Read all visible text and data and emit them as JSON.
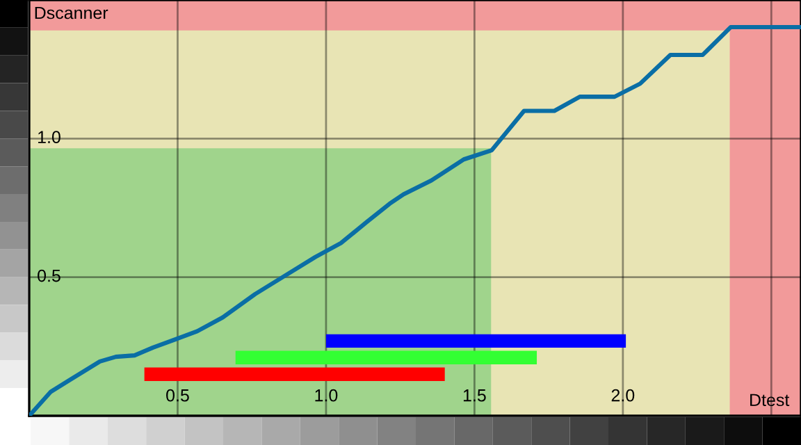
{
  "chart_data": {
    "type": "line",
    "xlabel": "Dtest",
    "ylabel": "Dscanner",
    "xlim": [
      0,
      2.6
    ],
    "ylim": [
      0,
      1.5
    ],
    "xticks": [
      0.5,
      {
        "value": 1.0,
        "label": "1.0"
      },
      {
        "value": 1.5,
        "label": "1.5"
      },
      {
        "value": 2.0,
        "label": "2.0"
      },
      {
        "value": 2.5,
        "label": null
      }
    ],
    "yticks": [
      0.5,
      {
        "value": 1.0,
        "label": "1.0"
      }
    ],
    "grid": true,
    "legend": false,
    "bands": [
      {
        "axis": "y",
        "from": 1.39,
        "to": 1.5,
        "color": "#f29a9a"
      },
      {
        "axis": "x",
        "from": 2.36,
        "to": 2.6,
        "color": "#f29a9a"
      }
    ],
    "series": [
      {
        "type": "area",
        "color": "#a0d48c",
        "x": [
          0,
          1.556
        ],
        "values": [
          0.965,
          0.965
        ]
      },
      {
        "color": "#0a6ea5",
        "x": [
          0,
          0.073,
          0.136,
          0.238,
          0.292,
          0.355,
          0.417,
          0.503,
          0.566,
          0.652,
          0.761,
          0.855,
          0.964,
          1.05,
          1.136,
          1.214,
          1.261,
          1.355,
          1.464,
          1.558,
          1.667,
          1.769,
          1.855,
          1.972,
          2.058,
          2.16,
          2.269,
          2.363,
          2.6
        ],
        "values": [
          0,
          0.087,
          0.129,
          0.196,
          0.213,
          0.218,
          0.246,
          0.28,
          0.305,
          0.355,
          0.439,
          0.501,
          0.573,
          0.623,
          0.698,
          0.765,
          0.799,
          0.849,
          0.925,
          0.958,
          1.1,
          1.1,
          1.151,
          1.151,
          1.198,
          1.302,
          1.302,
          1.402,
          1.402
        ]
      },
      {
        "color": "#0000ff",
        "x": [
          1.0,
          2.01
        ],
        "values": [
          0.27,
          0.27
        ]
      },
      {
        "color": "#33ff33",
        "x": [
          0.695,
          1.71
        ],
        "values": [
          0.21,
          0.21
        ]
      },
      {
        "color": "#ff0000",
        "x": [
          0.388,
          1.4
        ],
        "values": [
          0.15,
          0.15
        ]
      }
    ]
  }
}
